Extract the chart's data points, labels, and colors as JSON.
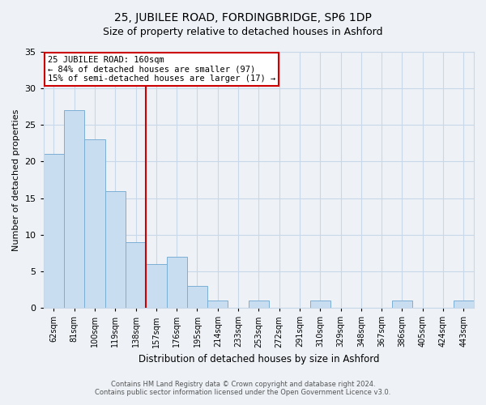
{
  "title": "25, JUBILEE ROAD, FORDINGBRIDGE, SP6 1DP",
  "subtitle": "Size of property relative to detached houses in Ashford",
  "xlabel": "Distribution of detached houses by size in Ashford",
  "ylabel": "Number of detached properties",
  "bar_labels": [
    "62sqm",
    "81sqm",
    "100sqm",
    "119sqm",
    "138sqm",
    "157sqm",
    "176sqm",
    "195sqm",
    "214sqm",
    "233sqm",
    "253sqm",
    "272sqm",
    "291sqm",
    "310sqm",
    "329sqm",
    "348sqm",
    "367sqm",
    "386sqm",
    "405sqm",
    "424sqm",
    "443sqm"
  ],
  "bar_values": [
    21,
    27,
    23,
    16,
    9,
    6,
    7,
    3,
    1,
    0,
    1,
    0,
    0,
    1,
    0,
    0,
    0,
    1,
    0,
    0,
    1
  ],
  "bar_color": "#c9ddf0",
  "bar_edge_color": "#7bafd4",
  "vline_color": "#cc0000",
  "annotation_title": "25 JUBILEE ROAD: 160sqm",
  "annotation_line1": "← 84% of detached houses are smaller (97)",
  "annotation_line2": "15% of semi-detached houses are larger (17) →",
  "annotation_box_color": "#ffffff",
  "annotation_box_edge": "#cc0000",
  "ylim": [
    0,
    35
  ],
  "yticks": [
    0,
    5,
    10,
    15,
    20,
    25,
    30,
    35
  ],
  "grid_color": "#c8d8e8",
  "background_color": "#eef2f7",
  "footnote1": "Contains HM Land Registry data © Crown copyright and database right 2024.",
  "footnote2": "Contains public sector information licensed under the Open Government Licence v3.0."
}
